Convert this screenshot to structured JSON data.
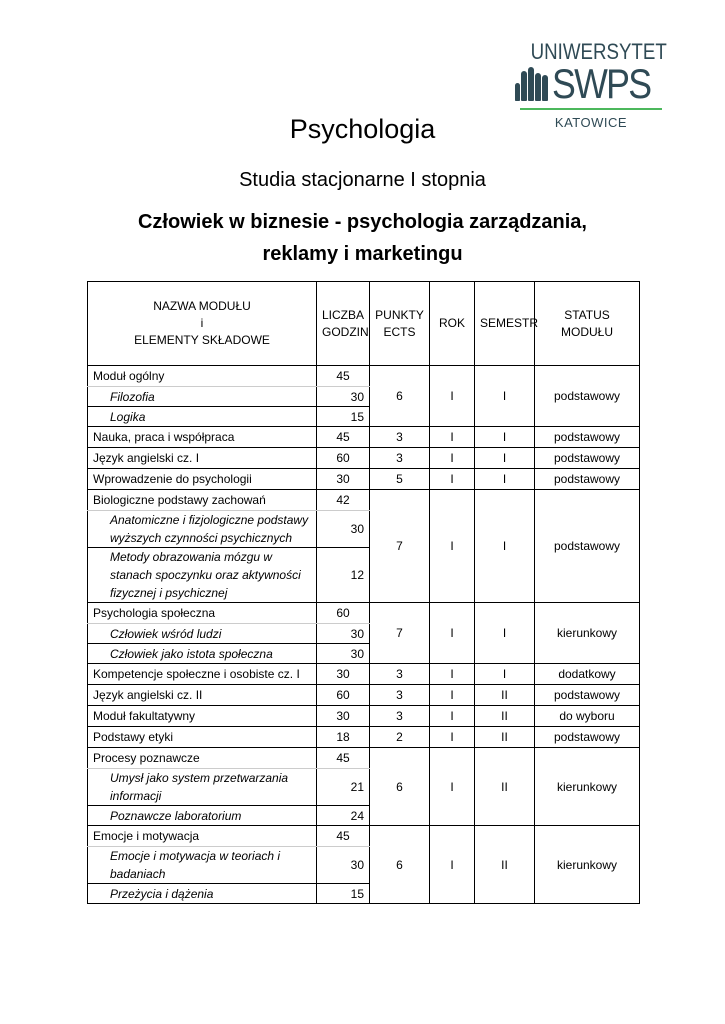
{
  "logo": {
    "line1": "UNIWERSYTET",
    "line2": "SWPS",
    "line3": "KATOWICE",
    "accent": "#4cb85c",
    "color": "#2f4a55"
  },
  "title": "Psychologia",
  "subtitle": "Studia stacjonarne I stopnia",
  "specialization_line1": "Człowiek w biznesie - psychologia zarządzania,",
  "specialization_line2": "reklamy i marketingu",
  "table": {
    "headers": [
      {
        "lines": [
          "NAZWA MODUŁU",
          "i",
          "ELEMENTY SKŁADOWE"
        ]
      },
      {
        "lines": [
          "LICZBA",
          "GODZIN"
        ]
      },
      {
        "lines": [
          "PUNKTY",
          "ECTS"
        ]
      },
      {
        "lines": [
          "ROK"
        ]
      },
      {
        "lines": [
          "SEMESTR"
        ]
      },
      {
        "lines": [
          "STATUS",
          "MODUŁU"
        ]
      }
    ],
    "modules": [
      {
        "name": "Moduł ogólny",
        "hours": "45",
        "ects": "6",
        "rok": "I",
        "semestr": "I",
        "status": "podstawowy",
        "items": [
          {
            "name": "Filozofia",
            "hours": "30"
          },
          {
            "name": "Logika",
            "hours": "15"
          }
        ]
      },
      {
        "name": "Nauka, praca i współpraca",
        "hours": "45",
        "ects": "3",
        "rok": "I",
        "semestr": "I",
        "status": "podstawowy",
        "items": []
      },
      {
        "name": "Język angielski cz. I",
        "hours": "60",
        "ects": "3",
        "rok": "I",
        "semestr": "I",
        "status": "podstawowy",
        "items": []
      },
      {
        "name": "Wprowadzenie do psychologii",
        "hours": "30",
        "ects": "5",
        "rok": "I",
        "semestr": "I",
        "status": "podstawowy",
        "items": []
      },
      {
        "name": "Biologiczne podstawy zachowań",
        "hours": "42",
        "ects": "7",
        "rok": "I",
        "semestr": "I",
        "status": "podstawowy",
        "items": [
          {
            "name": "Anatomiczne i fizjologiczne podstawy wyższych czynności psychicznych",
            "hours": "30"
          },
          {
            "name": "Metody obrazowania mózgu w stanach spoczynku oraz aktywności fizycznej i psychicznej",
            "hours": "12"
          }
        ]
      },
      {
        "name": "Psychologia społeczna",
        "hours": "60",
        "ects": "7",
        "rok": "I",
        "semestr": "I",
        "status": "kierunkowy",
        "items": [
          {
            "name": "Człowiek wśród ludzi",
            "hours": "30"
          },
          {
            "name": "Człowiek jako istota społeczna",
            "hours": "30"
          }
        ]
      },
      {
        "name": "Kompetencje społeczne i osobiste cz. I",
        "hours": "30",
        "ects": "3",
        "rok": "I",
        "semestr": "I",
        "status": "dodatkowy",
        "items": []
      },
      {
        "name": "Język angielski cz. II",
        "hours": "60",
        "ects": "3",
        "rok": "I",
        "semestr": "II",
        "status": "podstawowy",
        "items": []
      },
      {
        "name": "Moduł fakultatywny",
        "hours": "30",
        "ects": "3",
        "rok": "I",
        "semestr": "II",
        "status": "do wyboru",
        "items": []
      },
      {
        "name": "Podstawy etyki",
        "hours": "18",
        "ects": "2",
        "rok": "I",
        "semestr": "II",
        "status": "podstawowy",
        "items": []
      },
      {
        "name": "Procesy poznawcze",
        "hours": "45",
        "ects": "6",
        "rok": "I",
        "semestr": "II",
        "status": "kierunkowy",
        "items": [
          {
            "name": "Umysł jako system przetwarzania informacji",
            "hours": "21"
          },
          {
            "name": "Poznawcze laboratorium",
            "hours": "24"
          }
        ]
      },
      {
        "name": "Emocje i motywacja",
        "hours": "45",
        "ects": "6",
        "rok": "I",
        "semestr": "II",
        "status": "kierunkowy",
        "items": [
          {
            "name": "Emocje i motywacja w teoriach i badaniach",
            "hours": "30"
          },
          {
            "name": "Przeżycia i dążenia",
            "hours": "15"
          }
        ]
      }
    ]
  }
}
